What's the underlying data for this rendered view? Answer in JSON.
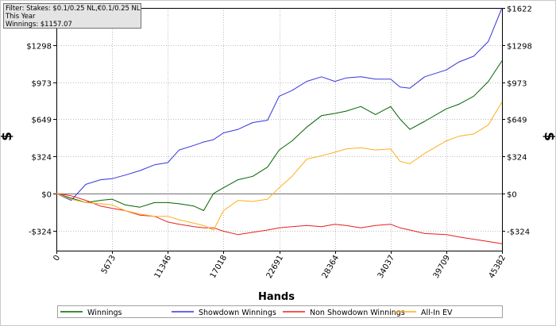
{
  "filter_box": {
    "line1": "Filter: Stakes: $0.1/0.25 NL,€0.1/0.25 NL",
    "line2": "This Year",
    "line3": "Winnings: $1157.07"
  },
  "colors": {
    "winnings": "#006400",
    "showdown": "#3535e0",
    "non_showdown": "#e82020",
    "allin_ev": "#ffae1a",
    "grid": "#bdbdbd",
    "zero_line": "#707070"
  },
  "chart_data": {
    "type": "line",
    "xlabel": "Hands",
    "ylabel": "$",
    "xlim": [
      0,
      45382
    ],
    "ylim": [
      -500,
      1622
    ],
    "x_ticks": [
      0,
      5673,
      11346,
      17018,
      22691,
      28364,
      34037,
      39709,
      45382
    ],
    "x_tick_labels": [
      "0",
      "5673",
      "11346",
      "17018",
      "22691",
      "28364",
      "34037",
      "39709",
      "45382"
    ],
    "y_ticks": [
      -324,
      0,
      324,
      649,
      973,
      1298,
      1622
    ],
    "y_tick_labels": [
      "-$324",
      "$0",
      "$324",
      "$649",
      "$973",
      "$1298",
      "$1622"
    ],
    "grid": true,
    "legend_position": "bottom",
    "x": [
      0,
      1500,
      3000,
      4500,
      5673,
      7000,
      8500,
      10000,
      11346,
      12500,
      14000,
      15000,
      16000,
      17018,
      18500,
      20000,
      21500,
      22691,
      24000,
      25500,
      27000,
      28364,
      29500,
      31000,
      32500,
      34037,
      35000,
      36000,
      37500,
      39709,
      41000,
      42500,
      44000,
      45382
    ],
    "series": [
      {
        "name": "Winnings",
        "color": "#006400",
        "values": [
          0,
          -40,
          -80,
          -60,
          -50,
          -100,
          -120,
          -80,
          -80,
          -90,
          -110,
          -150,
          0,
          50,
          120,
          150,
          230,
          380,
          460,
          580,
          680,
          700,
          720,
          760,
          690,
          760,
          650,
          560,
          630,
          740,
          780,
          850,
          980,
          1160
        ]
      },
      {
        "name": "Showdown Winnings",
        "color": "#3535e0",
        "values": [
          0,
          -60,
          80,
          120,
          130,
          160,
          200,
          250,
          270,
          380,
          420,
          450,
          470,
          530,
          560,
          620,
          640,
          850,
          900,
          980,
          1020,
          980,
          1010,
          1020,
          1000,
          1000,
          930,
          920,
          1020,
          1080,
          1150,
          1200,
          1330,
          1622
        ]
      },
      {
        "name": "Non Showdown Winnings",
        "color": "#e82020",
        "values": [
          0,
          -20,
          -60,
          -110,
          -130,
          -150,
          -190,
          -200,
          -250,
          -270,
          -290,
          -300,
          -300,
          -330,
          -360,
          -340,
          -320,
          -300,
          -290,
          -280,
          -290,
          -270,
          -280,
          -300,
          -280,
          -270,
          -300,
          -320,
          -350,
          -360,
          -380,
          -400,
          -420,
          -440
        ]
      },
      {
        "name": "All-In EV",
        "color": "#ffae1a",
        "values": [
          0,
          -50,
          -80,
          -90,
          -100,
          -150,
          -180,
          -200,
          -200,
          -230,
          -260,
          -280,
          -320,
          -150,
          -60,
          -70,
          -50,
          50,
          150,
          300,
          330,
          360,
          390,
          400,
          380,
          390,
          280,
          260,
          350,
          460,
          500,
          520,
          600,
          800
        ]
      }
    ]
  }
}
